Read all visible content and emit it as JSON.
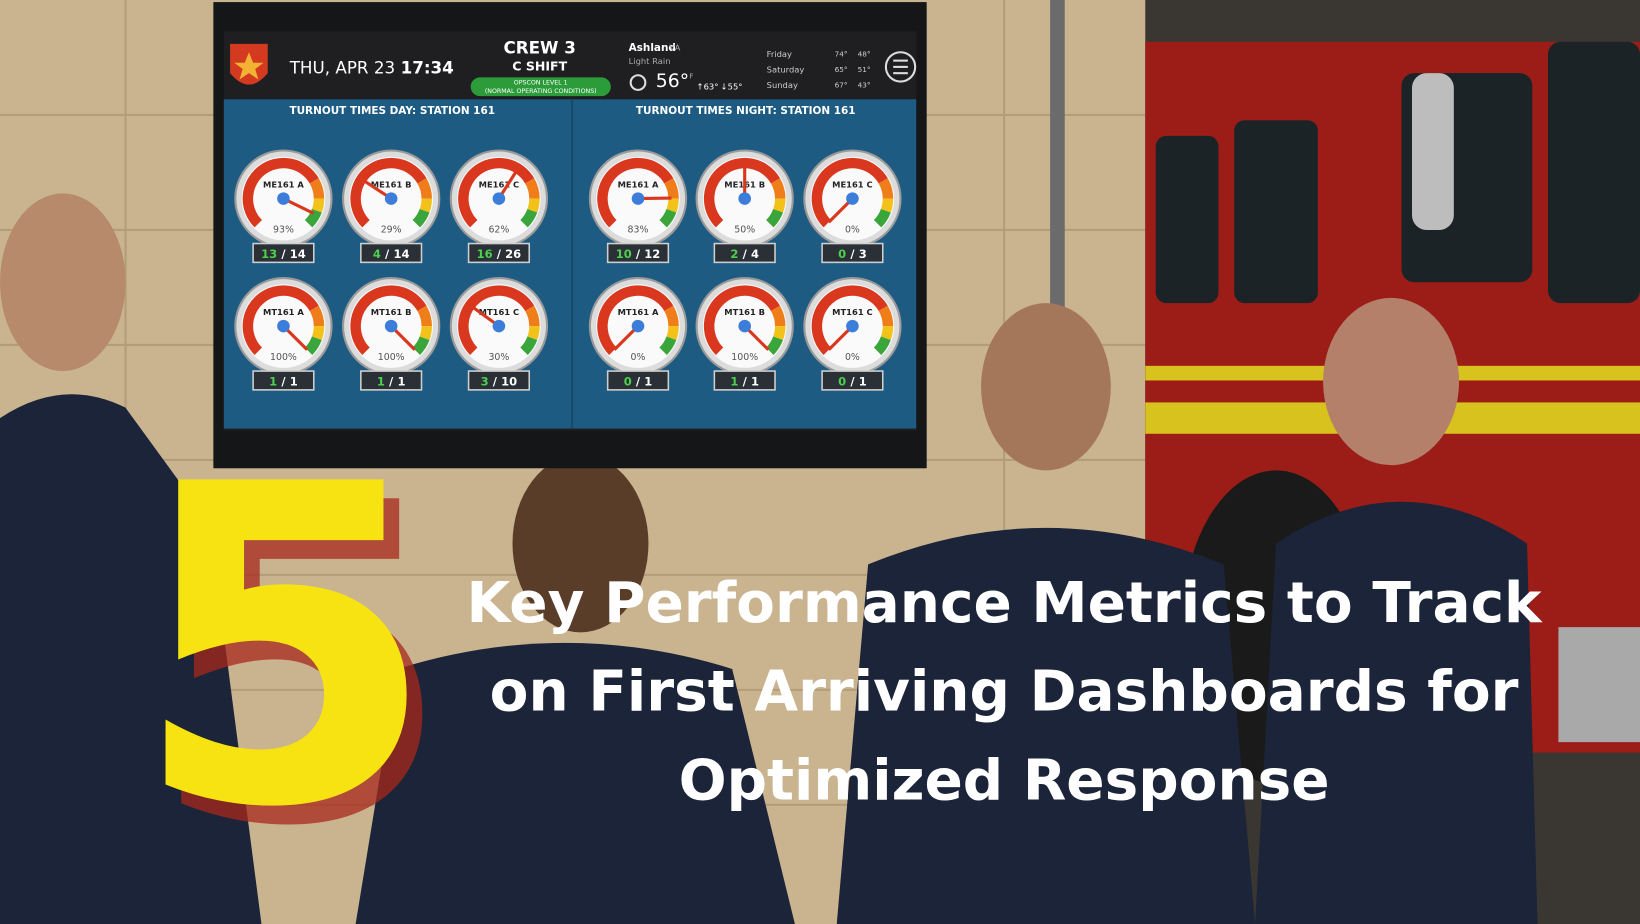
{
  "dashboard": {
    "date": "THU, APR 23",
    "time": "17:34",
    "crew": "CREW 3",
    "shift": "C SHIFT",
    "opscon": [
      "OPSCON LEVEL 1",
      "(NORMAL OPERATING CONDITIONS)"
    ],
    "location": "Ashland",
    "state": "VA",
    "conditions": "Light Rain",
    "temperature": "56°",
    "unit": "F",
    "high": "↑63°",
    "low": "↓55°",
    "forecast": [
      {
        "day": "Friday",
        "high": "74°",
        "low": "48°"
      },
      {
        "day": "Saturday",
        "high": "65°",
        "low": "51°"
      },
      {
        "day": "Sunday",
        "high": "67°",
        "low": "43°"
      }
    ],
    "panels": [
      {
        "title": "TURNOUT TIMES DAY: STATION 161",
        "gauges": [
          {
            "name": "ME161 A",
            "percent": {
              "value": 93,
              "label": "93%"
            },
            "count": [
              13,
              "/",
              14
            ]
          },
          {
            "name": "ME161 B",
            "percent": {
              "value": 29,
              "label": "29%"
            },
            "count": [
              4,
              "/",
              14
            ]
          },
          {
            "name": "ME161 C",
            "percent": {
              "value": 62,
              "label": "62%"
            },
            "count": [
              16,
              "/",
              26
            ]
          },
          {
            "name": "MT161 A",
            "percent": {
              "value": 100,
              "label": "100%"
            },
            "count": [
              1,
              "/",
              1
            ]
          },
          {
            "name": "MT161 B",
            "percent": {
              "value": 100,
              "label": "100%"
            },
            "count": [
              1,
              "/",
              1
            ]
          },
          {
            "name": "MT161 C",
            "percent": {
              "value": 30,
              "label": "30%"
            },
            "count": [
              3,
              "/",
              10
            ]
          }
        ]
      },
      {
        "title": "TURNOUT TIMES NIGHT: STATION 161",
        "gauges": [
          {
            "name": "ME161 A",
            "percent": {
              "value": 83,
              "label": "83%"
            },
            "count": [
              10,
              "/",
              12
            ]
          },
          {
            "name": "ME161 B",
            "percent": {
              "value": 50,
              "label": "50%"
            },
            "count": [
              2,
              "/",
              4
            ]
          },
          {
            "name": "ME161 C",
            "percent": {
              "value": 0,
              "label": "0%"
            },
            "count": [
              0,
              "/",
              3
            ]
          },
          {
            "name": "MT161 A",
            "percent": {
              "value": 0,
              "label": "0%"
            },
            "count": [
              0,
              "/",
              1
            ]
          },
          {
            "name": "MT161 B",
            "percent": {
              "value": 100,
              "label": "100%"
            },
            "count": [
              1,
              "/",
              1
            ]
          },
          {
            "name": "MT161 C",
            "percent": {
              "value": 0,
              "label": "0%"
            },
            "count": [
              0,
              "/",
              1
            ]
          }
        ]
      }
    ]
  },
  "headline": {
    "number": 5,
    "lines": [
      "Key Performance Metrics to Track",
      "on First Arriving Dashboards for",
      "Optimized Response"
    ]
  }
}
